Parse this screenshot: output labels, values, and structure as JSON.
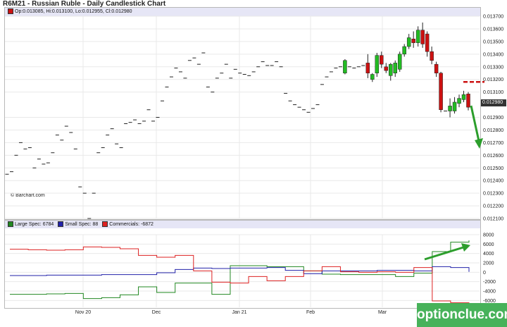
{
  "title": "R6M21 - Russian Ruble - Daily Candlestick Chart",
  "ohlc_readout": "Op:0.013085, Hi:0.013100, Lo:0.012955, Cl:0.012980",
  "copyright": "© Barchart.com",
  "watermark": "optionclue.com",
  "colors": {
    "up": "#22bb22",
    "down": "#cc1111",
    "large_spec": "#228822",
    "small_spec": "#2222aa",
    "commercials": "#dd2222",
    "annotation": "#2c9e2c",
    "forecast": "#cc1111",
    "panel_header": "#e6e6f6"
  },
  "chart_data": [
    {
      "type": "candlestick",
      "title": "R6M21 - Russian Ruble - Daily Candlestick Chart",
      "ylim": [
        0.0121,
        0.0137
      ],
      "y_ticks": [
        "0.013700",
        "0.013600",
        "0.013500",
        "0.013400",
        "0.013300",
        "0.013200",
        "0.013100",
        "0.012900",
        "0.012800",
        "0.012700",
        "0.012600",
        "0.012500",
        "0.012400",
        "0.012300",
        "0.012200",
        "0.012100"
      ],
      "x_ticks": [
        "Nov 20",
        "Dec",
        "Jan 21",
        "Feb",
        "Mar"
      ],
      "last_price": "0.012980",
      "candles": [
        {
          "o": 0.01245,
          "h": 0.01246,
          "l": 0.01244,
          "c": 0.01245
        },
        {
          "o": 0.01247,
          "h": 0.01248,
          "l": 0.01246,
          "c": 0.01247
        },
        {
          "o": 0.0126,
          "h": 0.01261,
          "l": 0.01259,
          "c": 0.0126
        },
        {
          "o": 0.0127,
          "h": 0.01271,
          "l": 0.01269,
          "c": 0.0127
        },
        {
          "o": 0.01265,
          "h": 0.01266,
          "l": 0.01264,
          "c": 0.01265
        },
        {
          "o": 0.01266,
          "h": 0.01267,
          "l": 0.01265,
          "c": 0.01266
        },
        {
          "o": 0.0125,
          "h": 0.01251,
          "l": 0.01249,
          "c": 0.0125
        },
        {
          "o": 0.01257,
          "h": 0.01258,
          "l": 0.01256,
          "c": 0.01257
        },
        {
          "o": 0.01253,
          "h": 0.01254,
          "l": 0.01252,
          "c": 0.01253
        },
        {
          "o": 0.01254,
          "h": 0.01255,
          "l": 0.01253,
          "c": 0.01254
        },
        {
          "o": 0.01262,
          "h": 0.01263,
          "l": 0.01261,
          "c": 0.01262
        },
        {
          "o": 0.01276,
          "h": 0.01277,
          "l": 0.01275,
          "c": 0.01276
        },
        {
          "o": 0.01272,
          "h": 0.01273,
          "l": 0.01271,
          "c": 0.01272
        },
        {
          "o": 0.01283,
          "h": 0.01284,
          "l": 0.01282,
          "c": 0.01283
        },
        {
          "o": 0.01278,
          "h": 0.01279,
          "l": 0.01277,
          "c": 0.01278
        },
        {
          "o": 0.01265,
          "h": 0.01266,
          "l": 0.01264,
          "c": 0.01265
        },
        {
          "o": 0.01235,
          "h": 0.0124,
          "l": 0.01234,
          "c": 0.01235
        },
        {
          "o": 0.0123,
          "h": 0.01231,
          "l": 0.01229,
          "c": 0.0123
        },
        {
          "o": 0.0121,
          "h": 0.01211,
          "l": 0.01209,
          "c": 0.0121
        },
        {
          "o": 0.0123,
          "h": 0.01231,
          "l": 0.01229,
          "c": 0.0123
        },
        {
          "o": 0.01262,
          "h": 0.01263,
          "l": 0.01261,
          "c": 0.01262
        },
        {
          "o": 0.01266,
          "h": 0.01267,
          "l": 0.01265,
          "c": 0.01266
        },
        {
          "o": 0.01276,
          "h": 0.01277,
          "l": 0.01275,
          "c": 0.01276
        },
        {
          "o": 0.01281,
          "h": 0.01282,
          "l": 0.0128,
          "c": 0.01281
        },
        {
          "o": 0.01269,
          "h": 0.0127,
          "l": 0.01268,
          "c": 0.01269
        },
        {
          "o": 0.01266,
          "h": 0.01267,
          "l": 0.01265,
          "c": 0.01266
        },
        {
          "o": 0.01285,
          "h": 0.01286,
          "l": 0.01284,
          "c": 0.01285
        },
        {
          "o": 0.01286,
          "h": 0.01287,
          "l": 0.01285,
          "c": 0.01286
        },
        {
          "o": 0.01288,
          "h": 0.01289,
          "l": 0.01287,
          "c": 0.01288
        },
        {
          "o": 0.01285,
          "h": 0.01286,
          "l": 0.01284,
          "c": 0.01285
        },
        {
          "o": 0.01287,
          "h": 0.01288,
          "l": 0.01286,
          "c": 0.01287
        },
        {
          "o": 0.01296,
          "h": 0.01297,
          "l": 0.01295,
          "c": 0.01296
        },
        {
          "o": 0.01287,
          "h": 0.01288,
          "l": 0.01286,
          "c": 0.01287
        },
        {
          "o": 0.0129,
          "h": 0.01291,
          "l": 0.01289,
          "c": 0.0129
        },
        {
          "o": 0.01303,
          "h": 0.01304,
          "l": 0.01302,
          "c": 0.01303
        },
        {
          "o": 0.01314,
          "h": 0.01315,
          "l": 0.01313,
          "c": 0.01314
        },
        {
          "o": 0.01322,
          "h": 0.01323,
          "l": 0.01321,
          "c": 0.01322
        },
        {
          "o": 0.01329,
          "h": 0.0133,
          "l": 0.01328,
          "c": 0.01329
        },
        {
          "o": 0.01326,
          "h": 0.01327,
          "l": 0.01325,
          "c": 0.01326
        },
        {
          "o": 0.01321,
          "h": 0.01322,
          "l": 0.0132,
          "c": 0.01321
        },
        {
          "o": 0.01335,
          "h": 0.01336,
          "l": 0.01334,
          "c": 0.01335
        },
        {
          "o": 0.01337,
          "h": 0.01338,
          "l": 0.01336,
          "c": 0.01337
        },
        {
          "o": 0.01332,
          "h": 0.01333,
          "l": 0.01331,
          "c": 0.01332
        },
        {
          "o": 0.01341,
          "h": 0.01342,
          "l": 0.0134,
          "c": 0.01341
        },
        {
          "o": 0.01314,
          "h": 0.01315,
          "l": 0.01313,
          "c": 0.01314
        },
        {
          "o": 0.0131,
          "h": 0.01311,
          "l": 0.01309,
          "c": 0.0131
        },
        {
          "o": 0.01321,
          "h": 0.01322,
          "l": 0.0132,
          "c": 0.01321
        },
        {
          "o": 0.01325,
          "h": 0.01326,
          "l": 0.01324,
          "c": 0.01325
        },
        {
          "o": 0.01332,
          "h": 0.01333,
          "l": 0.01331,
          "c": 0.01332
        },
        {
          "o": 0.01321,
          "h": 0.01322,
          "l": 0.0132,
          "c": 0.01321
        },
        {
          "o": 0.01328,
          "h": 0.01329,
          "l": 0.01327,
          "c": 0.01328
        },
        {
          "o": 0.01325,
          "h": 0.01326,
          "l": 0.01324,
          "c": 0.01325
        },
        {
          "o": 0.01324,
          "h": 0.01325,
          "l": 0.01323,
          "c": 0.01324
        },
        {
          "o": 0.01323,
          "h": 0.01324,
          "l": 0.01322,
          "c": 0.01323
        },
        {
          "o": 0.01326,
          "h": 0.01327,
          "l": 0.01325,
          "c": 0.01326
        },
        {
          "o": 0.0133,
          "h": 0.01331,
          "l": 0.01329,
          "c": 0.0133
        },
        {
          "o": 0.01334,
          "h": 0.01335,
          "l": 0.01333,
          "c": 0.01334
        },
        {
          "o": 0.01331,
          "h": 0.01332,
          "l": 0.0133,
          "c": 0.01331
        },
        {
          "o": 0.01331,
          "h": 0.01332,
          "l": 0.0133,
          "c": 0.01331
        },
        {
          "o": 0.01334,
          "h": 0.01335,
          "l": 0.01333,
          "c": 0.01334
        },
        {
          "o": 0.0133,
          "h": 0.01331,
          "l": 0.01329,
          "c": 0.0133
        },
        {
          "o": 0.01309,
          "h": 0.0131,
          "l": 0.01308,
          "c": 0.01309
        },
        {
          "o": 0.01303,
          "h": 0.01304,
          "l": 0.01302,
          "c": 0.01303
        },
        {
          "o": 0.013,
          "h": 0.01301,
          "l": 0.01299,
          "c": 0.013
        },
        {
          "o": 0.01298,
          "h": 0.01299,
          "l": 0.01297,
          "c": 0.01298
        },
        {
          "o": 0.01296,
          "h": 0.01297,
          "l": 0.01295,
          "c": 0.01296
        },
        {
          "o": 0.01294,
          "h": 0.01295,
          "l": 0.01293,
          "c": 0.01294
        },
        {
          "o": 0.01297,
          "h": 0.01298,
          "l": 0.01296,
          "c": 0.01297
        },
        {
          "o": 0.013,
          "h": 0.01301,
          "l": 0.01299,
          "c": 0.013
        },
        {
          "o": 0.01316,
          "h": 0.01317,
          "l": 0.01315,
          "c": 0.01316
        },
        {
          "o": 0.01322,
          "h": 0.01323,
          "l": 0.01321,
          "c": 0.01322
        },
        {
          "o": 0.01326,
          "h": 0.01327,
          "l": 0.01325,
          "c": 0.01326
        },
        {
          "o": 0.01329,
          "h": 0.0133,
          "l": 0.01328,
          "c": 0.01329
        },
        {
          "o": 0.0133,
          "h": 0.01331,
          "l": 0.01329,
          "c": 0.0133
        },
        {
          "o": 0.01325,
          "h": 0.01336,
          "l": 0.01324,
          "c": 0.01335
        },
        {
          "o": 0.0133,
          "h": 0.01331,
          "l": 0.01329,
          "c": 0.0133
        },
        {
          "o": 0.01329,
          "h": 0.0133,
          "l": 0.01328,
          "c": 0.01329
        },
        {
          "o": 0.0133,
          "h": 0.01331,
          "l": 0.01329,
          "c": 0.0133
        },
        {
          "o": 0.01331,
          "h": 0.01332,
          "l": 0.0133,
          "c": 0.01331
        },
        {
          "o": 0.01333,
          "h": 0.0134,
          "l": 0.01321,
          "c": 0.01325
        },
        {
          "o": 0.0132,
          "h": 0.01325,
          "l": 0.01318,
          "c": 0.01324
        },
        {
          "o": 0.01325,
          "h": 0.01341,
          "l": 0.01322,
          "c": 0.01339
        },
        {
          "o": 0.01339,
          "h": 0.01342,
          "l": 0.01329,
          "c": 0.01332
        },
        {
          "o": 0.0133,
          "h": 0.01333,
          "l": 0.01325,
          "c": 0.01327
        },
        {
          "o": 0.01323,
          "h": 0.01333,
          "l": 0.01319,
          "c": 0.01332
        },
        {
          "o": 0.01325,
          "h": 0.01335,
          "l": 0.01322,
          "c": 0.01333
        },
        {
          "o": 0.01328,
          "h": 0.01342,
          "l": 0.01326,
          "c": 0.0134
        },
        {
          "o": 0.0134,
          "h": 0.01348,
          "l": 0.01338,
          "c": 0.01346
        },
        {
          "o": 0.01346,
          "h": 0.01356,
          "l": 0.01344,
          "c": 0.01353
        },
        {
          "o": 0.01352,
          "h": 0.01358,
          "l": 0.01345,
          "c": 0.01349
        },
        {
          "o": 0.01349,
          "h": 0.01362,
          "l": 0.01346,
          "c": 0.01359
        },
        {
          "o": 0.01359,
          "h": 0.01365,
          "l": 0.01345,
          "c": 0.01348
        },
        {
          "o": 0.01356,
          "h": 0.01358,
          "l": 0.01338,
          "c": 0.01342
        },
        {
          "o": 0.01342,
          "h": 0.01346,
          "l": 0.01332,
          "c": 0.01335
        },
        {
          "o": 0.01332,
          "h": 0.01334,
          "l": 0.01322,
          "c": 0.01325
        },
        {
          "o": 0.01325,
          "h": 0.01326,
          "l": 0.01294,
          "c": 0.01296
        },
        {
          "o": 0.01296,
          "h": 0.013,
          "l": 0.01285,
          "c": 0.01295
        },
        {
          "o": 0.01295,
          "h": 0.01305,
          "l": 0.0129,
          "c": 0.01299
        },
        {
          "o": 0.01295,
          "h": 0.01306,
          "l": 0.01293,
          "c": 0.01302
        },
        {
          "o": 0.01301,
          "h": 0.01308,
          "l": 0.01298,
          "c": 0.01305
        },
        {
          "o": 0.01304,
          "h": 0.01311,
          "l": 0.01302,
          "c": 0.01308
        },
        {
          "o": 0.013085,
          "h": 0.0131,
          "l": 0.012955,
          "c": 0.01298
        }
      ]
    },
    {
      "type": "line",
      "title": "",
      "ylim": [
        -7000,
        8000
      ],
      "y_ticks": [
        "8000",
        "6000",
        "4000",
        "2000",
        "0",
        "-2000",
        "-4000",
        "-6000"
      ],
      "x_ticks": [
        "Nov 20",
        "Dec",
        "Jan 21",
        "Feb",
        "Mar"
      ],
      "step": true,
      "series": [
        {
          "name": "Large Spec: 6784",
          "values": [
            -4700,
            -4700,
            -4600,
            -4500,
            -5600,
            -5400,
            -4800,
            -3100,
            -4300,
            -2300,
            -2300,
            -4700,
            1400,
            1400,
            1200,
            1200,
            300,
            -400,
            -500,
            -500,
            -500,
            -900,
            -200,
            4400,
            6400,
            6784
          ]
        },
        {
          "name": "Small Spec: 88",
          "values": [
            -700,
            -700,
            -600,
            -600,
            -600,
            -500,
            -500,
            -500,
            -100,
            600,
            900,
            800,
            900,
            900,
            1000,
            400,
            -300,
            300,
            300,
            300,
            400,
            400,
            300,
            1200,
            1000,
            88
          ]
        },
        {
          "name": "Commercials: -6872",
          "values": [
            4900,
            4800,
            4700,
            4800,
            5400,
            5300,
            5000,
            3600,
            3200,
            3600,
            300,
            -2100,
            -2300,
            -900,
            -1800,
            -900,
            300,
            1200,
            100,
            0,
            100,
            0,
            1000,
            -6100,
            -6500,
            -6872
          ]
        }
      ]
    }
  ]
}
